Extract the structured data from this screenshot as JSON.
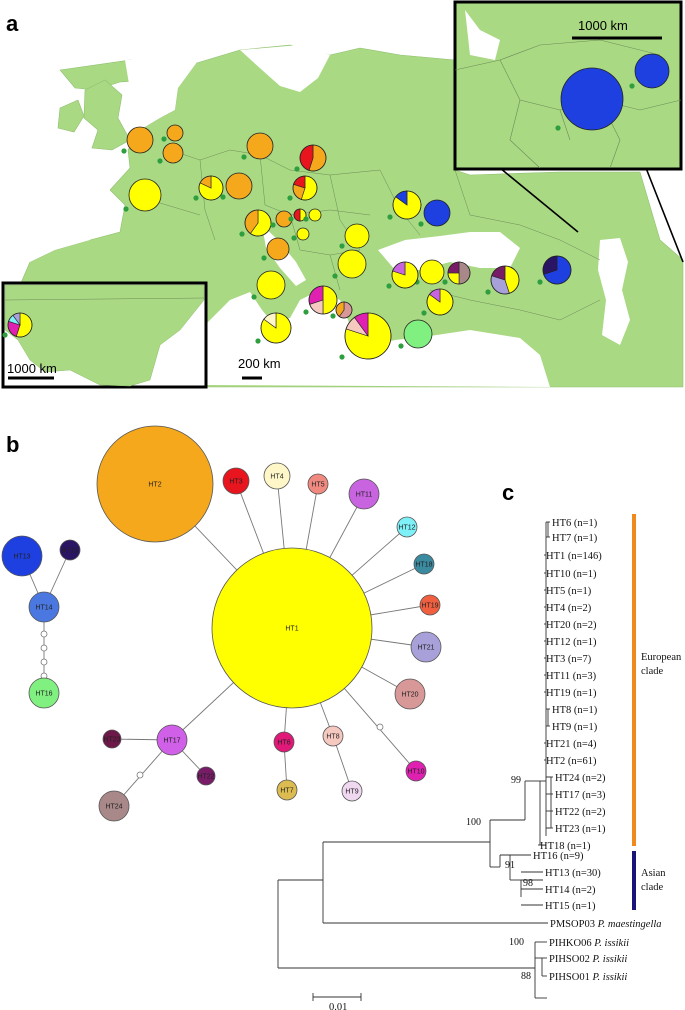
{
  "panels": {
    "a": "a",
    "b": "b",
    "c": "c"
  },
  "colors": {
    "land": "#a9d983",
    "sea": "#ffffff",
    "HT1": "#ffff00",
    "HT2": "#f5a81c",
    "HT3": "#e8141e",
    "HT4": "#fff7c8",
    "HT5": "#f08a80",
    "HT6": "#e01878",
    "HT7": "#dcbc50",
    "HT8": "#f5c8c0",
    "HT9": "#f0d8f0",
    "HT10": "#e020b0",
    "HT11": "#c864e0",
    "HT12": "#7ef0f8",
    "HT13": "#1e40e0",
    "HT14": "#4a78e0",
    "HT15": "#2a1464",
    "HT16": "#80f080",
    "HT17": "#d060e8",
    "HT18": "#3a8aa0",
    "HT19": "#f06040",
    "HT20": "#d89898",
    "HT21": "#a8a0d8",
    "HT22": "#781c68",
    "HT23": "#6c1848",
    "HT24": "#a88888",
    "european_bar": "#f08a1e",
    "asian_bar": "#1a1478",
    "site_dot": "#2e9e3e"
  },
  "map": {
    "scale_main": "200 km",
    "scale_inset_asia": "1000 km",
    "scale_inset_america": "1000 km"
  },
  "network": {
    "nodes": [
      {
        "id": "HT1",
        "label": "HT1"
      },
      {
        "id": "HT2",
        "label": "HT2"
      },
      {
        "id": "HT3",
        "label": "HT3"
      },
      {
        "id": "HT4",
        "label": "HT4"
      },
      {
        "id": "HT5",
        "label": "HT5"
      },
      {
        "id": "HT6",
        "label": "HT6"
      },
      {
        "id": "HT7",
        "label": "HT7"
      },
      {
        "id": "HT8",
        "label": "HT8"
      },
      {
        "id": "HT9",
        "label": "HT9"
      },
      {
        "id": "HT10",
        "label": "HT10"
      },
      {
        "id": "HT11",
        "label": "HT11"
      },
      {
        "id": "HT12",
        "label": "HT12"
      },
      {
        "id": "HT13",
        "label": "HT13"
      },
      {
        "id": "HT14",
        "label": "HT14"
      },
      {
        "id": "HT15",
        "label": "HT15"
      },
      {
        "id": "HT16",
        "label": "HT16"
      },
      {
        "id": "HT17",
        "label": "HT17"
      },
      {
        "id": "HT18",
        "label": "HT18"
      },
      {
        "id": "HT19",
        "label": "HT19"
      },
      {
        "id": "HT20",
        "label": "HT20"
      },
      {
        "id": "HT21",
        "label": "HT21"
      },
      {
        "id": "HT22",
        "label": "HT22"
      },
      {
        "id": "HT23",
        "label": "HT23"
      },
      {
        "id": "HT24",
        "label": "HT24"
      }
    ]
  },
  "tree": {
    "european_tips": [
      "HT6 (n=1)",
      "HT7 (n=1)",
      "HT1 (n=146)",
      "HT10 (n=1)",
      "HT5 (n=1)",
      "HT4 (n=2)",
      "HT20 (n=2)",
      "HT12 (n=1)",
      "HT3 (n=7)",
      "HT11 (n=3)",
      "HT19 (n=1)",
      "HT8 (n=1)",
      "HT9 (n=1)",
      "HT21 (n=4)",
      "HT2 (n=61)",
      "HT24 (n=2)",
      "HT17 (n=3)",
      "HT22 (n=2)",
      "HT23 (n=1)",
      "HT18 (n=1)"
    ],
    "asian_tips": [
      "HT16 (n=9)",
      "HT13 (n=30)",
      "HT14 (n=2)",
      "HT15 (n=1)"
    ],
    "outgroup": [
      {
        "code": "PMSOP03",
        "species": "P. maestingella"
      },
      {
        "code": "PIHKO06",
        "species": "P. issikii"
      },
      {
        "code": "PIHSO02",
        "species": "P. issikii"
      },
      {
        "code": "PIHSO01",
        "species": "P. issikii"
      }
    ],
    "bootstrap": {
      "european": "99",
      "ingroup": "100",
      "asian": "91",
      "asian_sub": "98",
      "issikii": "100",
      "issikii_sub": "88"
    },
    "clade_european": "European clade",
    "clade_asian": "Asian clade",
    "scale": "0.01"
  }
}
